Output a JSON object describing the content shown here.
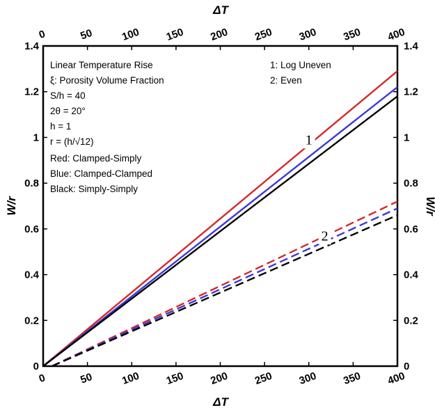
{
  "chart_data": {
    "type": "line",
    "xlabel": "ΔT",
    "ylabel": "W/r",
    "xlim": [
      0,
      400
    ],
    "ylim": [
      0,
      1.4
    ],
    "x_ticks": [
      "0",
      "50",
      "100",
      "150",
      "200",
      "250",
      "300",
      "350",
      "400"
    ],
    "y_ticks": [
      "0",
      "0.2",
      "0.4",
      "0.6",
      "0.8",
      "1",
      "1.2",
      "1.4"
    ],
    "annotations": {
      "left": [
        "Linear Temperature Rise",
        "ξ: Porosity Volume Fraction",
        "S/h = 40",
        "2θ = 20°",
        "h = 1",
        "r = (h/√12)",
        "Red: Clamped-Simply",
        "Blue: Clamped-Clamped",
        "Black: Simply-Simply"
      ],
      "legend": [
        "1: Log Uneven",
        "2: Even"
      ]
    },
    "curve_labels": [
      {
        "text": "1",
        "x": 300,
        "y": 0.97
      },
      {
        "text": "2",
        "x": 318,
        "y": 0.55
      }
    ],
    "series": [
      {
        "color": "#d62828",
        "style": "solid",
        "x": [
          0,
          400
        ],
        "y": [
          0,
          1.29
        ]
      },
      {
        "color": "#3a3ad8",
        "style": "solid",
        "x": [
          0,
          400
        ],
        "y": [
          0,
          1.22
        ]
      },
      {
        "color": "#000000",
        "style": "solid",
        "x": [
          0,
          400
        ],
        "y": [
          0,
          1.18
        ]
      },
      {
        "color": "#d62828",
        "style": "dashed",
        "x": [
          10,
          400
        ],
        "y": [
          0.0,
          0.72
        ]
      },
      {
        "color": "#3a3ad8",
        "style": "dashed",
        "x": [
          10,
          400
        ],
        "y": [
          0.0,
          0.69
        ]
      },
      {
        "color": "#000000",
        "style": "dashed",
        "x": [
          10,
          400
        ],
        "y": [
          0.0,
          0.66
        ]
      }
    ]
  }
}
